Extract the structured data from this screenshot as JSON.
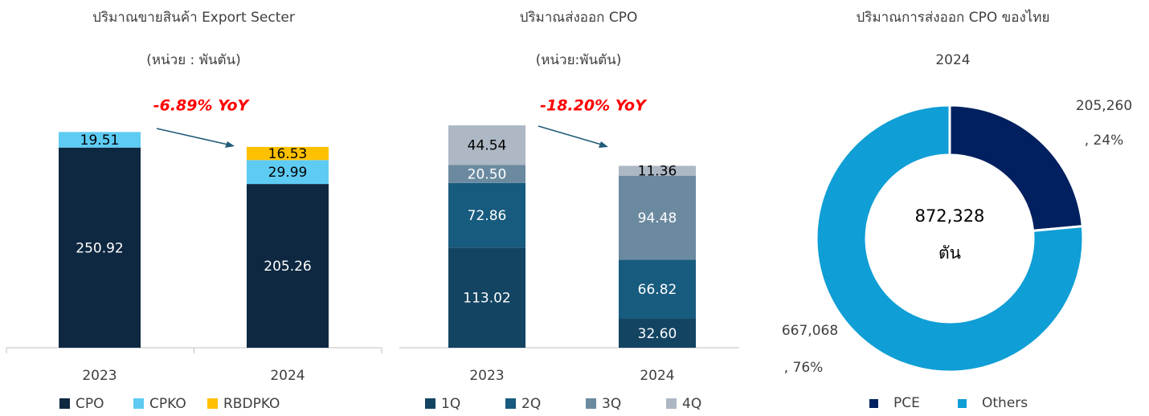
{
  "chart_data": [
    {
      "type": "stacked_bar",
      "title": "ปริมาณขายสินค้า Export Secter",
      "subtitle": "(หน่วย : พันตัน)",
      "annotation": "-6.89% YoY",
      "categories": [
        "2023",
        "2024"
      ],
      "ylim": [
        0,
        300
      ],
      "series": [
        {
          "name": "CPO",
          "color": "#0e2841",
          "label_color": "#ffffff",
          "values": [
            250.92,
            205.26
          ],
          "value_labels": [
            "250.92",
            "205.26"
          ]
        },
        {
          "name": "CPKO",
          "color": "#5ecbf3",
          "label_color": "#000000",
          "values": [
            19.51,
            29.99
          ],
          "value_labels": [
            "19.51",
            "29.99"
          ]
        },
        {
          "name": "RBDPKO",
          "color": "#ffc000",
          "label_color": "#000000",
          "values": [
            null,
            16.53
          ],
          "value_labels": [
            null,
            "16.53"
          ]
        }
      ]
    },
    {
      "type": "stacked_bar",
      "title": "ปริมาณส่งออก CPO",
      "subtitle": "(หน่วย:พันตัน)",
      "annotation": "-18.20% YoY",
      "categories": [
        "2023",
        "2024"
      ],
      "ylim": [
        0,
        270
      ],
      "series": [
        {
          "name": "1Q",
          "color": "#134462",
          "label_color": "#ffffff",
          "values": [
            113.02,
            32.6
          ],
          "value_labels": [
            "113.02",
            "32.60"
          ]
        },
        {
          "name": "2Q",
          "color": "#175b7e",
          "label_color": "#ffffff",
          "values": [
            72.86,
            66.82
          ],
          "value_labels": [
            "72.86",
            "66.82"
          ]
        },
        {
          "name": "3Q",
          "color": "#6b8aa0",
          "label_color": "#ffffff",
          "values": [
            20.5,
            94.48
          ],
          "value_labels": [
            "20.50",
            "94.48"
          ]
        },
        {
          "name": "4Q",
          "color": "#adb8c4",
          "label_color": "#000000",
          "values": [
            44.54,
            11.36
          ],
          "value_labels": [
            "44.54",
            "11.36"
          ]
        }
      ]
    },
    {
      "type": "donut",
      "title": "ปริมาณการส่งออก CPO ของไทย",
      "subtitle": "2024",
      "center_label": [
        "872,328",
        "ตัน"
      ],
      "categories": [
        "PCE",
        "Others"
      ],
      "values": [
        205260,
        667068
      ],
      "colors": [
        "#002060",
        "#0f9ed5"
      ],
      "data_labels": [
        [
          "205,260",
          ", 24%"
        ],
        [
          "667,068",
          ", 76%"
        ]
      ]
    }
  ]
}
